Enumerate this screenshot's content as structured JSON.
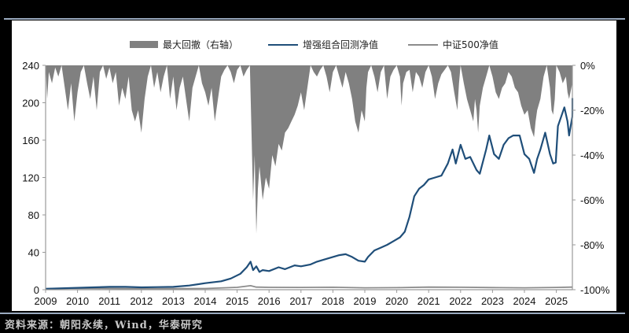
{
  "legend": {
    "items": [
      {
        "label": "最大回撤（右轴）",
        "type": "area",
        "color": "#808080"
      },
      {
        "label": "增强组合回测净值",
        "type": "line",
        "color": "#1f4e79"
      },
      {
        "label": "中证500净值",
        "type": "line",
        "color": "#8c8c8c"
      }
    ]
  },
  "source": "资料来源：朝阳永续，Wind，华泰研究",
  "chart_data": {
    "type": "line",
    "title": "",
    "xlabel": "",
    "ylabel": "",
    "ylabel_right": "",
    "x_ticks": [
      "2009",
      "2010",
      "2011",
      "2012",
      "2013",
      "2014",
      "2015",
      "2016",
      "2017",
      "2018",
      "2019",
      "2020",
      "2021",
      "2022",
      "2023",
      "2024",
      "2025"
    ],
    "y_ticks_left": [
      "0",
      "40",
      "80",
      "120",
      "160",
      "200",
      "240"
    ],
    "y_ticks_right": [
      "0%",
      "-20%",
      "-40%",
      "-60%",
      "-80%",
      "-100%"
    ],
    "ylim_left": [
      0,
      240
    ],
    "ylim_right": [
      -100,
      0
    ],
    "xlim": [
      2009.0,
      2025.5
    ],
    "grid": false,
    "legend_position": "top",
    "series": [
      {
        "name": "增强组合回测净值",
        "axis": "left",
        "color": "#1f4e79",
        "points": [
          [
            2009.0,
            1
          ],
          [
            2009.5,
            1.5
          ],
          [
            2010.0,
            2
          ],
          [
            2010.5,
            2.5
          ],
          [
            2011.0,
            3
          ],
          [
            2011.5,
            3
          ],
          [
            2012.0,
            2.5
          ],
          [
            2012.5,
            2.8
          ],
          [
            2013.0,
            3
          ],
          [
            2013.5,
            4.5
          ],
          [
            2014.0,
            7
          ],
          [
            2014.5,
            9
          ],
          [
            2014.8,
            12
          ],
          [
            2015.1,
            17
          ],
          [
            2015.3,
            24
          ],
          [
            2015.42,
            30
          ],
          [
            2015.5,
            21
          ],
          [
            2015.6,
            25
          ],
          [
            2015.7,
            19
          ],
          [
            2015.8,
            21
          ],
          [
            2016.0,
            20
          ],
          [
            2016.3,
            24
          ],
          [
            2016.5,
            22
          ],
          [
            2016.8,
            26
          ],
          [
            2017.0,
            25
          ],
          [
            2017.3,
            27
          ],
          [
            2017.5,
            30
          ],
          [
            2017.8,
            33
          ],
          [
            2018.0,
            35
          ],
          [
            2018.2,
            37
          ],
          [
            2018.4,
            38
          ],
          [
            2018.6,
            35
          ],
          [
            2018.8,
            31
          ],
          [
            2019.0,
            30
          ],
          [
            2019.1,
            35
          ],
          [
            2019.3,
            42
          ],
          [
            2019.5,
            45
          ],
          [
            2019.7,
            48
          ],
          [
            2019.9,
            52
          ],
          [
            2020.1,
            56
          ],
          [
            2020.25,
            62
          ],
          [
            2020.4,
            78
          ],
          [
            2020.55,
            100
          ],
          [
            2020.7,
            108
          ],
          [
            2020.85,
            112
          ],
          [
            2021.0,
            118
          ],
          [
            2021.2,
            120
          ],
          [
            2021.4,
            122
          ],
          [
            2021.6,
            135
          ],
          [
            2021.75,
            150
          ],
          [
            2021.85,
            135
          ],
          [
            2022.0,
            155
          ],
          [
            2022.15,
            140
          ],
          [
            2022.3,
            142
          ],
          [
            2022.5,
            128
          ],
          [
            2022.6,
            124
          ],
          [
            2022.8,
            150
          ],
          [
            2022.9,
            165
          ],
          [
            2023.05,
            145
          ],
          [
            2023.2,
            140
          ],
          [
            2023.35,
            155
          ],
          [
            2023.5,
            162
          ],
          [
            2023.65,
            165
          ],
          [
            2023.85,
            165
          ],
          [
            2024.0,
            145
          ],
          [
            2024.15,
            140
          ],
          [
            2024.3,
            125
          ],
          [
            2024.4,
            140
          ],
          [
            2024.5,
            150
          ],
          [
            2024.65,
            168
          ],
          [
            2024.8,
            145
          ],
          [
            2024.9,
            135
          ],
          [
            2024.98,
            136
          ],
          [
            2025.05,
            175
          ],
          [
            2025.15,
            185
          ],
          [
            2025.25,
            195
          ],
          [
            2025.35,
            180
          ],
          [
            2025.4,
            165
          ],
          [
            2025.5,
            185
          ],
          [
            2025.6,
            190
          ],
          [
            2025.7,
            188
          ],
          [
            2025.8,
            205
          ]
        ]
      },
      {
        "name": "中证500净值",
        "axis": "left",
        "color": "#8c8c8c",
        "points": [
          [
            2009.0,
            1
          ],
          [
            2010.0,
            1.5
          ],
          [
            2011.0,
            1.3
          ],
          [
            2012.0,
            1
          ],
          [
            2013.0,
            1.2
          ],
          [
            2014.0,
            1.3
          ],
          [
            2015.0,
            2.5
          ],
          [
            2015.42,
            4.3
          ],
          [
            2015.6,
            2.8
          ],
          [
            2016.0,
            2.5
          ],
          [
            2017.0,
            2.4
          ],
          [
            2018.0,
            2.6
          ],
          [
            2019.0,
            2
          ],
          [
            2020.0,
            2.2
          ],
          [
            2021.0,
            2.8
          ],
          [
            2022.0,
            2.6
          ],
          [
            2023.0,
            2.3
          ],
          [
            2024.0,
            2
          ],
          [
            2025.0,
            2.4
          ],
          [
            2025.8,
            2.8
          ]
        ]
      },
      {
        "name": "最大回撤（右轴）",
        "axis": "right",
        "type": "area",
        "color": "#808080",
        "points": [
          [
            2009.0,
            0
          ],
          [
            2009.05,
            -15
          ],
          [
            2009.1,
            -3
          ],
          [
            2009.2,
            -8
          ],
          [
            2009.3,
            -1
          ],
          [
            2009.4,
            -5
          ],
          [
            2009.5,
            0
          ],
          [
            2009.6,
            -10
          ],
          [
            2009.7,
            -20
          ],
          [
            2009.8,
            -8
          ],
          [
            2009.9,
            -25
          ],
          [
            2010.0,
            -12
          ],
          [
            2010.1,
            -3
          ],
          [
            2010.2,
            0
          ],
          [
            2010.3,
            -8
          ],
          [
            2010.4,
            -15
          ],
          [
            2010.5,
            -5
          ],
          [
            2010.6,
            -20
          ],
          [
            2010.7,
            -3
          ],
          [
            2010.8,
            0
          ],
          [
            2010.9,
            -6
          ],
          [
            2011.0,
            -1
          ],
          [
            2011.1,
            -8
          ],
          [
            2011.2,
            -3
          ],
          [
            2011.3,
            -18
          ],
          [
            2011.4,
            -10
          ],
          [
            2011.5,
            -15
          ],
          [
            2011.6,
            -5
          ],
          [
            2011.7,
            -20
          ],
          [
            2011.8,
            -25
          ],
          [
            2011.9,
            -20
          ],
          [
            2012.0,
            -30
          ],
          [
            2012.1,
            -15
          ],
          [
            2012.2,
            -5
          ],
          [
            2012.3,
            0
          ],
          [
            2012.4,
            -10
          ],
          [
            2012.5,
            -3
          ],
          [
            2012.6,
            -12
          ],
          [
            2012.7,
            -5
          ],
          [
            2012.8,
            0
          ],
          [
            2012.9,
            -15
          ],
          [
            2013.0,
            -5
          ],
          [
            2013.1,
            -20
          ],
          [
            2013.2,
            -10
          ],
          [
            2013.3,
            -5
          ],
          [
            2013.4,
            -15
          ],
          [
            2013.5,
            -25
          ],
          [
            2013.6,
            -10
          ],
          [
            2013.7,
            -5
          ],
          [
            2013.8,
            0
          ],
          [
            2013.9,
            -8
          ],
          [
            2014.0,
            -12
          ],
          [
            2014.1,
            -18
          ],
          [
            2014.2,
            -10
          ],
          [
            2014.3,
            -25
          ],
          [
            2014.4,
            -15
          ],
          [
            2014.5,
            -5
          ],
          [
            2014.6,
            -2
          ],
          [
            2014.7,
            0
          ],
          [
            2014.8,
            -3
          ],
          [
            2014.9,
            -8
          ],
          [
            2015.0,
            -2
          ],
          [
            2015.1,
            0
          ],
          [
            2015.2,
            -5
          ],
          [
            2015.3,
            -2
          ],
          [
            2015.4,
            0
          ],
          [
            2015.45,
            -30
          ],
          [
            2015.5,
            -60
          ],
          [
            2015.55,
            -40
          ],
          [
            2015.6,
            -75
          ],
          [
            2015.65,
            -55
          ],
          [
            2015.7,
            -45
          ],
          [
            2015.8,
            -60
          ],
          [
            2015.9,
            -50
          ],
          [
            2016.0,
            -55
          ],
          [
            2016.1,
            -40
          ],
          [
            2016.2,
            -45
          ],
          [
            2016.3,
            -35
          ],
          [
            2016.4,
            -38
          ],
          [
            2016.5,
            -30
          ],
          [
            2016.6,
            -28
          ],
          [
            2016.7,
            -25
          ],
          [
            2016.8,
            -22
          ],
          [
            2016.9,
            -18
          ],
          [
            2017.0,
            -12
          ],
          [
            2017.1,
            -20
          ],
          [
            2017.2,
            -10
          ],
          [
            2017.3,
            0
          ],
          [
            2017.4,
            -3
          ],
          [
            2017.5,
            -5
          ],
          [
            2017.6,
            -2
          ],
          [
            2017.7,
            0
          ],
          [
            2017.8,
            -5
          ],
          [
            2017.9,
            -12
          ],
          [
            2018.0,
            -3
          ],
          [
            2018.1,
            0
          ],
          [
            2018.2,
            -5
          ],
          [
            2018.3,
            -10
          ],
          [
            2018.4,
            -3
          ],
          [
            2018.5,
            -8
          ],
          [
            2018.6,
            -15
          ],
          [
            2018.7,
            -25
          ],
          [
            2018.8,
            -30
          ],
          [
            2018.9,
            -20
          ],
          [
            2019.0,
            -25
          ],
          [
            2019.05,
            -10
          ],
          [
            2019.1,
            -3
          ],
          [
            2019.2,
            0
          ],
          [
            2019.3,
            -5
          ],
          [
            2019.4,
            -12
          ],
          [
            2019.5,
            -3
          ],
          [
            2019.6,
            0
          ],
          [
            2019.7,
            -15
          ],
          [
            2019.8,
            -5
          ],
          [
            2019.9,
            -2
          ],
          [
            2020.0,
            0
          ],
          [
            2020.1,
            -5
          ],
          [
            2020.15,
            -18
          ],
          [
            2020.2,
            -8
          ],
          [
            2020.3,
            -3
          ],
          [
            2020.4,
            -2
          ],
          [
            2020.5,
            -12
          ],
          [
            2020.6,
            -3
          ],
          [
            2020.7,
            -5
          ],
          [
            2020.8,
            -10
          ],
          [
            2020.9,
            -3
          ],
          [
            2021.0,
            0
          ],
          [
            2021.1,
            -5
          ],
          [
            2021.2,
            -15
          ],
          [
            2021.3,
            -8
          ],
          [
            2021.4,
            -4
          ],
          [
            2021.5,
            -2
          ],
          [
            2021.6,
            0
          ],
          [
            2021.7,
            -3
          ],
          [
            2021.8,
            -12
          ],
          [
            2021.9,
            -20
          ],
          [
            2021.95,
            -8
          ],
          [
            2022.0,
            0
          ],
          [
            2022.1,
            -8
          ],
          [
            2022.2,
            -15
          ],
          [
            2022.3,
            -20
          ],
          [
            2022.4,
            -25
          ],
          [
            2022.45,
            -15
          ],
          [
            2022.5,
            -20
          ],
          [
            2022.55,
            -30
          ],
          [
            2022.6,
            -18
          ],
          [
            2022.7,
            -10
          ],
          [
            2022.8,
            -5
          ],
          [
            2022.9,
            0
          ],
          [
            2023.0,
            -5
          ],
          [
            2023.1,
            -12
          ],
          [
            2023.2,
            -15
          ],
          [
            2023.3,
            -10
          ],
          [
            2023.4,
            -8
          ],
          [
            2023.5,
            -3
          ],
          [
            2023.6,
            -5
          ],
          [
            2023.7,
            -10
          ],
          [
            2023.8,
            -12
          ],
          [
            2023.9,
            -18
          ],
          [
            2024.0,
            -22
          ],
          [
            2024.1,
            -20
          ],
          [
            2024.2,
            -28
          ],
          [
            2024.3,
            -32
          ],
          [
            2024.35,
            -25
          ],
          [
            2024.4,
            -20
          ],
          [
            2024.5,
            -15
          ],
          [
            2024.6,
            -5
          ],
          [
            2024.7,
            0
          ],
          [
            2024.8,
            -10
          ],
          [
            2024.85,
            -20
          ],
          [
            2024.9,
            -22
          ],
          [
            2024.95,
            -15
          ],
          [
            2025.0,
            0
          ],
          [
            2025.1,
            -3
          ],
          [
            2025.2,
            -8
          ],
          [
            2025.3,
            -5
          ],
          [
            2025.35,
            -12
          ],
          [
            2025.4,
            -15
          ],
          [
            2025.5,
            -8
          ],
          [
            2025.6,
            -5
          ],
          [
            2025.7,
            -3
          ],
          [
            2025.8,
            0
          ]
        ]
      }
    ]
  }
}
